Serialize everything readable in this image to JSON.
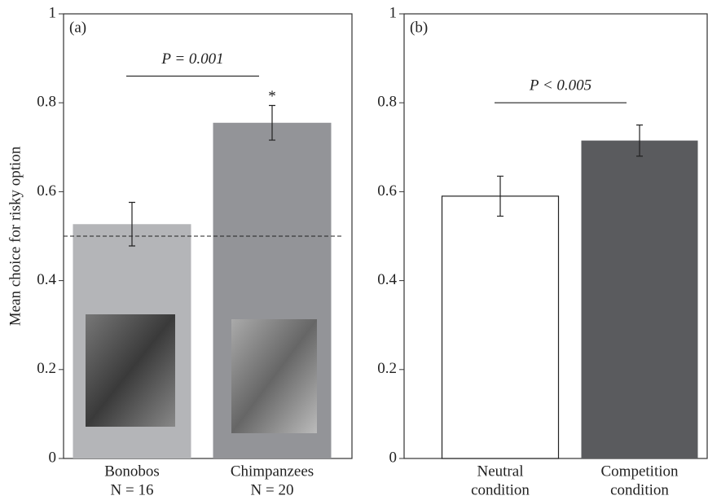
{
  "chart_data": [
    {
      "type": "bar",
      "panel_label": "(a)",
      "ylabel": "Mean choice for risky option",
      "categories": [
        "Bonobos",
        "Chimpanzees"
      ],
      "category_sublabels": [
        "N = 16",
        "N = 20"
      ],
      "values": [
        0.527,
        0.755
      ],
      "errors": [
        0.049,
        0.039
      ],
      "colors": [
        "#b4b5b8",
        "#939498"
      ],
      "significance": [
        null,
        "*"
      ],
      "reference_line": 0.5,
      "annotation": {
        "text": "P = 0.001",
        "y": 0.86
      },
      "ylim": [
        0,
        1
      ],
      "yticks": [
        0,
        0.2,
        0.4,
        0.6,
        0.8,
        1
      ]
    },
    {
      "type": "bar",
      "panel_label": "(b)",
      "categories": [
        "Neutral",
        "Competition"
      ],
      "category_sublabels": [
        "condition",
        "condition"
      ],
      "values": [
        0.59,
        0.715
      ],
      "errors": [
        0.045,
        0.035
      ],
      "colors": [
        "#ffffff",
        "#5a5b5e"
      ],
      "annotation": {
        "text": "P < 0.005",
        "y": 0.8
      },
      "ylim": [
        0,
        1
      ],
      "yticks": [
        0,
        0.2,
        0.4,
        0.6,
        0.8,
        1
      ]
    }
  ]
}
